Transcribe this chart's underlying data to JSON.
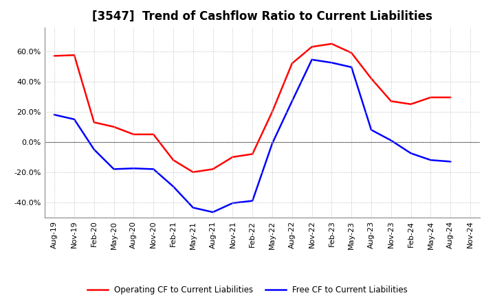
{
  "title": "[3547]  Trend of Cashflow Ratio to Current Liabilities",
  "x_labels": [
    "Aug-19",
    "Nov-19",
    "Feb-20",
    "May-20",
    "Aug-20",
    "Nov-20",
    "Feb-21",
    "May-21",
    "Aug-21",
    "Nov-21",
    "Feb-22",
    "May-22",
    "Aug-22",
    "Nov-22",
    "Feb-23",
    "May-23",
    "Aug-23",
    "Nov-23",
    "Feb-24",
    "May-24",
    "Aug-24",
    "Nov-24"
  ],
  "operating_cf": [
    0.57,
    0.575,
    0.13,
    0.1,
    0.05,
    0.05,
    -0.12,
    -0.2,
    -0.18,
    -0.1,
    -0.08,
    0.2,
    0.52,
    0.63,
    0.65,
    0.59,
    0.42,
    0.27,
    0.25,
    0.295,
    0.295,
    null
  ],
  "free_cf": [
    0.18,
    0.15,
    -0.05,
    -0.18,
    -0.175,
    -0.18,
    -0.295,
    -0.435,
    -0.465,
    -0.405,
    -0.39,
    -0.01,
    0.27,
    0.545,
    0.525,
    0.495,
    0.08,
    0.01,
    -0.075,
    -0.12,
    -0.13,
    null
  ],
  "operating_color": "#FF0000",
  "free_color": "#0000FF",
  "ylim": [
    -0.5,
    0.76
  ],
  "yticks": [
    -0.4,
    -0.2,
    0.0,
    0.2,
    0.4,
    0.6
  ],
  "background_color": "#FFFFFF",
  "grid_color": "#BBBBBB",
  "title_fontsize": 12,
  "tick_fontsize": 8,
  "legend_labels": [
    "Operating CF to Current Liabilities",
    "Free CF to Current Liabilities"
  ]
}
